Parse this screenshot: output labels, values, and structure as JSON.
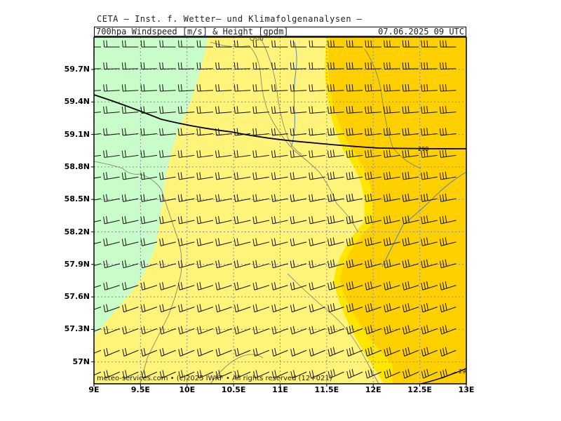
{
  "header": {
    "institute": "CETA – Inst. f. Wetter– und Klimafolgenanalysen –",
    "product": "700hpa_Windspeed_[m/s]_&_Height_[gpdm]",
    "valid_time": "07.06.2025  09 UTC"
  },
  "axes": {
    "lat_labels": [
      "59.7N",
      "59.4N",
      "59.1N",
      "58.8N",
      "58.5N",
      "58.2N",
      "57.9N",
      "57.6N",
      "57.3N",
      "57N"
    ],
    "lon_labels": [
      "9E",
      "9.5E",
      "10E",
      "10.5E",
      "11E",
      "11.5E",
      "12E",
      "12.5E",
      "13E"
    ]
  },
  "map": {
    "extent": {
      "lon_min": 9.0,
      "lon_max": 13.0,
      "lat_min": 56.85,
      "lat_max": 59.95
    },
    "city": "Oslo",
    "contour_label_main": "298",
    "contour_label_corner": "29",
    "copyright": "meteo-services.com • (c)2025 IWKF • All rights reserved (12+021)",
    "colors": {
      "light_green": "#c8fcc8",
      "light_yellow": "#fff47a",
      "gold_yellow": "#ffe600",
      "gold_orange": "#ffd000",
      "coast": "#7a7a6a",
      "river": "#5b80c0",
      "grid": "#8a8aa8",
      "barb": "#111111"
    }
  }
}
